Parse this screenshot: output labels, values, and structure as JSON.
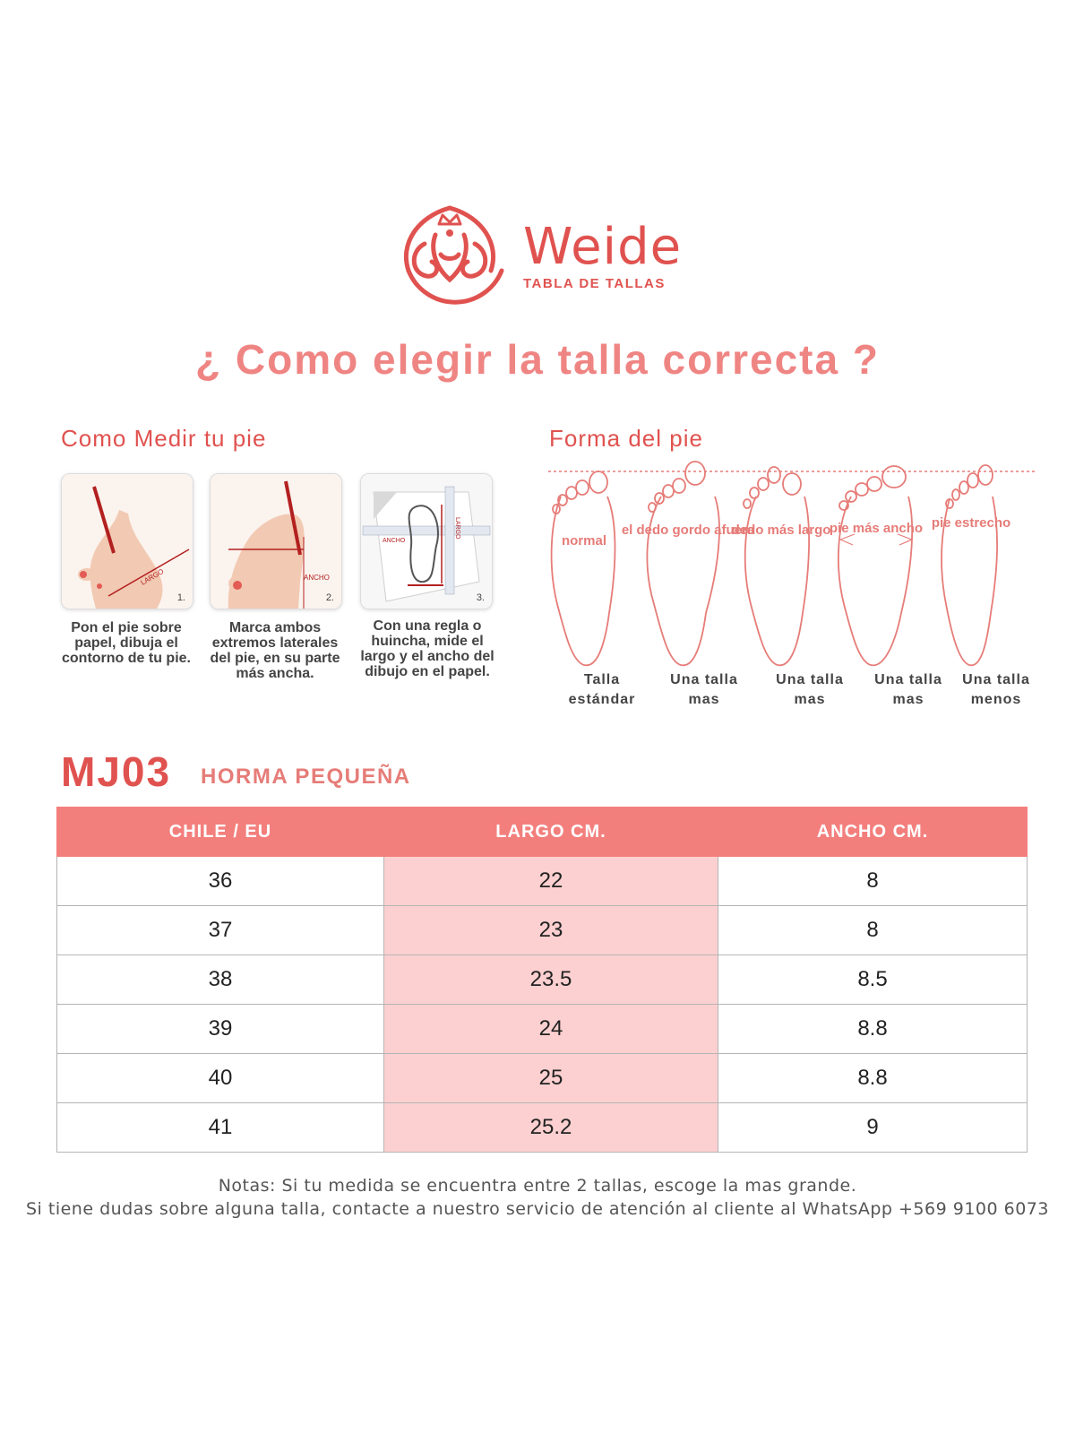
{
  "brand": {
    "name": "Weide",
    "subtitle": "TABLA DE TALLAS"
  },
  "main_title": "¿ Como elegir la talla correcta ?",
  "measure_section": {
    "heading": "Como Medir tu pie",
    "steps": [
      {
        "num": "1.",
        "tag": "LARGO",
        "text": "Pon el pie sobre papel, dibuja el contorno de tu pie."
      },
      {
        "num": "2.",
        "tag": "ANCHO",
        "text": "Marca ambos extremos laterales del pie, en su parte más ancha."
      },
      {
        "num": "3.",
        "tag_h": "ANCHO",
        "tag_v": "LARGO",
        "text": "Con una regla o huincha, mide el largo y el ancho del dibujo en el papel."
      }
    ]
  },
  "shape_section": {
    "heading": "Forma del pie",
    "shapes": [
      {
        "label": "normal",
        "caption": "Talla estándar"
      },
      {
        "label": "el dedo gordo afuera",
        "caption": "Una talla mas"
      },
      {
        "label": "dedo más largo",
        "caption": "Una talla mas"
      },
      {
        "label": "pie más ancho",
        "caption": "Una talla mas"
      },
      {
        "label": "pie estrecho",
        "caption": "Una talla menos"
      }
    ]
  },
  "model": {
    "code": "MJ03",
    "description": "HORMA PEQUEÑA"
  },
  "size_table": {
    "headers": [
      "CHILE / EU",
      "LARGO CM.",
      "ANCHO CM."
    ],
    "rows": [
      [
        "36",
        "22",
        "8"
      ],
      [
        "37",
        "23",
        "8"
      ],
      [
        "38",
        "23.5",
        "8.5"
      ],
      [
        "39",
        "24",
        "8.8"
      ],
      [
        "40",
        "25",
        "8.8"
      ],
      [
        "41",
        "25.2",
        "9"
      ]
    ]
  },
  "notes": [
    "Notas: Si tu medida se encuentra entre 2 tallas, escoge la mas grande.",
    "Si tiene dudas sobre alguna talla, contacte a nuestro servicio de atención al cliente al WhatsApp +569 9100 6073"
  ],
  "colors": {
    "accent": "#e0524f",
    "header": "#f37f7d",
    "highlight": "#fcd0d0",
    "title": "#ef8583"
  }
}
